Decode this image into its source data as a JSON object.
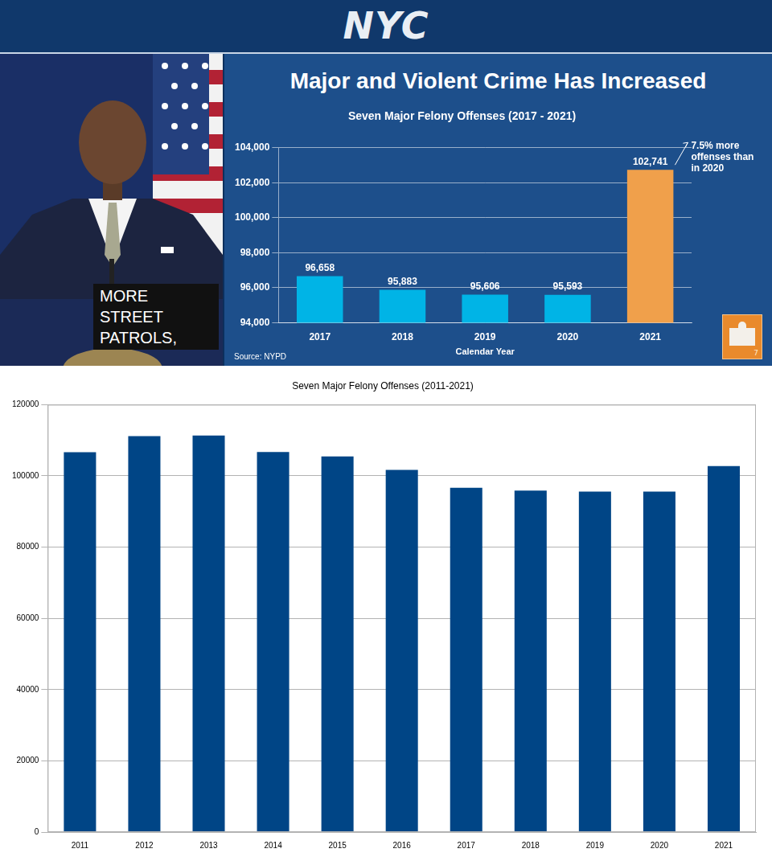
{
  "header": {
    "logo_text": "NYC"
  },
  "caption": "MORE STREET PATROLS,",
  "slide_number": "7",
  "chart_data": [
    {
      "type": "bar",
      "title": "Major and Violent Crime Has Increased",
      "subtitle": "Seven Major Felony Offenses (2017 - 2021)",
      "x_label": "Calendar Year",
      "source": "Source: NYPD",
      "categories": [
        "2017",
        "2018",
        "2019",
        "2020",
        "2021"
      ],
      "values": [
        96658,
        95883,
        95606,
        95593,
        102741
      ],
      "value_labels": [
        "96,658",
        "95,883",
        "95,606",
        "95,593",
        "102,741"
      ],
      "colors": [
        "#00b4e6",
        "#00b4e6",
        "#00b4e6",
        "#00b4e6",
        "#f0a04b"
      ],
      "ylim": [
        94000,
        104000
      ],
      "yticks": [
        {
          "value": 94000,
          "label": "94,000"
        },
        {
          "value": 96000,
          "label": "96,000"
        },
        {
          "value": 98000,
          "label": "98,000"
        },
        {
          "value": 100000,
          "label": "100,000"
        },
        {
          "value": 102000,
          "label": "102,000"
        },
        {
          "value": 104000,
          "label": "104,000"
        }
      ],
      "grid": true,
      "data_labels": true,
      "annotation": {
        "text": "7.5% more offenses than in 2020",
        "category": "2021"
      }
    },
    {
      "type": "bar",
      "title": "Seven Major Felony Offenses (2011-2021)",
      "categories": [
        "2011",
        "2012",
        "2013",
        "2014",
        "2015",
        "2016",
        "2017",
        "2018",
        "2019",
        "2020",
        "2021"
      ],
      "values": [
        106669,
        111147,
        111335,
        106722,
        105453,
        101716,
        96658,
        95883,
        95606,
        95593,
        102741
      ],
      "color": "#004586",
      "ylim": [
        0,
        120000
      ],
      "yticks": [
        0,
        20000,
        40000,
        60000,
        80000,
        100000,
        120000
      ],
      "grid": true
    }
  ]
}
